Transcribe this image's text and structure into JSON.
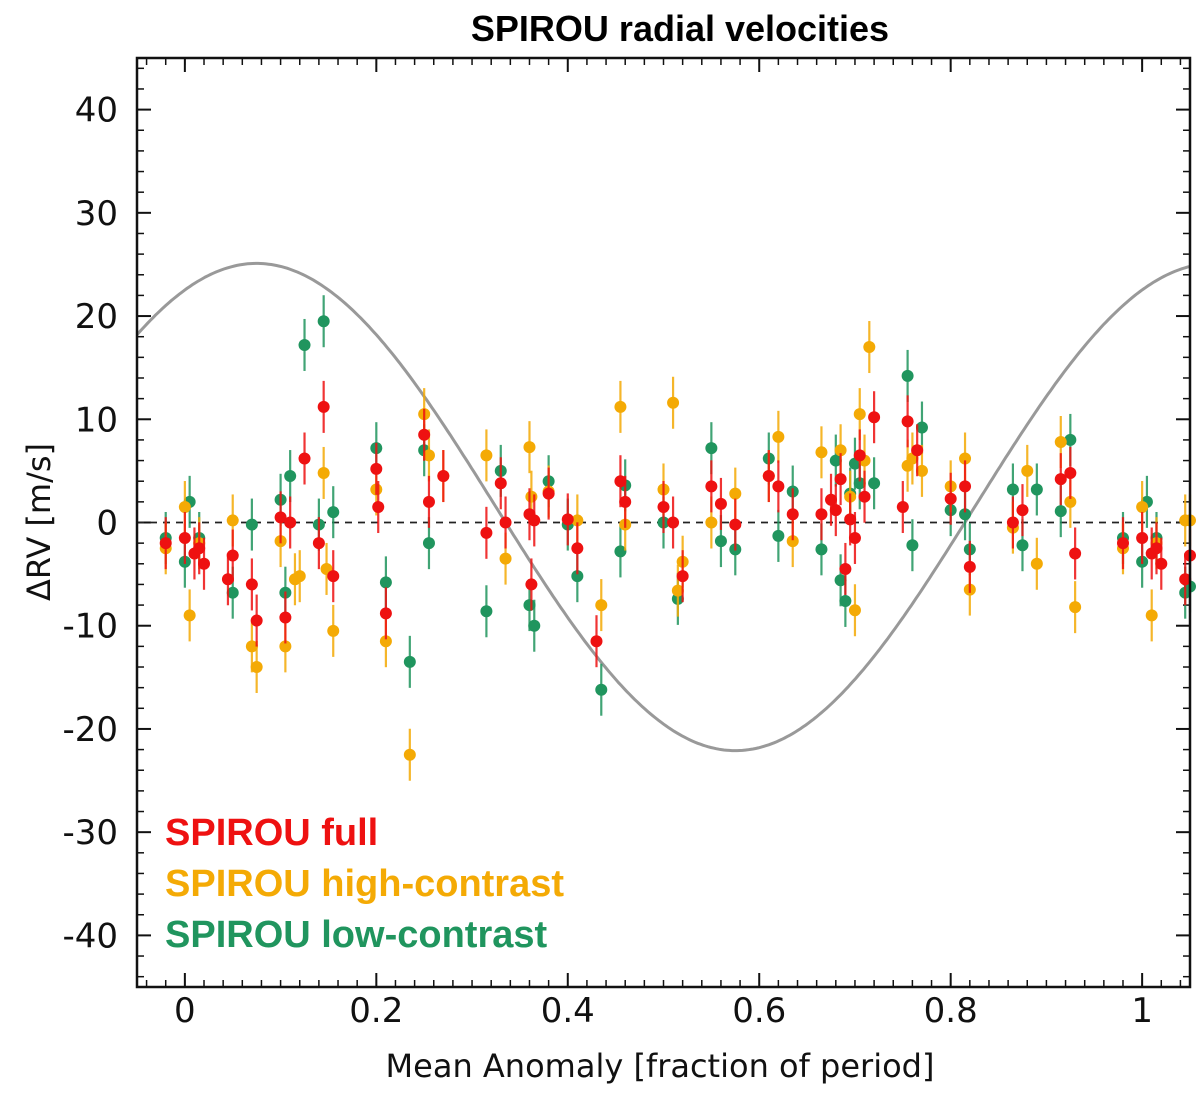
{
  "chart_data": {
    "type": "scatter",
    "title": "SPIROU radial velocities",
    "xlabel": "Mean Anomaly [fraction of period]",
    "ylabel": "ΔRV [m/s]",
    "xlim": [
      -0.05,
      1.05
    ],
    "ylim": [
      -45,
      45
    ],
    "xticks": [
      0,
      0.2,
      0.4,
      0.6,
      0.8,
      1
    ],
    "xtick_labels": [
      "0",
      "0.2",
      "0.4",
      "0.6",
      "0.8",
      "1"
    ],
    "yticks": [
      -40,
      -30,
      -20,
      -10,
      0,
      10,
      20,
      30,
      40
    ],
    "ytick_labels": [
      "-40",
      "-30",
      "-20",
      "-10",
      "0",
      "10",
      "20",
      "30",
      "40"
    ],
    "zero_line": 0,
    "model_curve": {
      "type": "sinusoid",
      "mean": 1.5,
      "amplitude": 23.6,
      "max_at_phase": 0.075
    },
    "legend_position": "bottom-left",
    "series": [
      {
        "name": "SPIROU full",
        "color": "#ee1111",
        "x": [
          -0.02,
          0.0,
          0.01,
          0.015,
          0.02,
          0.045,
          0.05,
          0.07,
          0.075,
          0.1,
          0.105,
          0.11,
          0.125,
          0.14,
          0.145,
          0.155,
          0.2,
          0.202,
          0.21,
          0.25,
          0.255,
          0.27,
          0.315,
          0.33,
          0.335,
          0.36,
          0.362,
          0.365,
          0.38,
          0.4,
          0.41,
          0.43,
          0.455,
          0.46,
          0.5,
          0.51,
          0.52,
          0.55,
          0.56,
          0.575,
          0.61,
          0.62,
          0.635,
          0.665,
          0.675,
          0.68,
          0.685,
          0.69,
          0.695,
          0.7,
          0.705,
          0.71,
          0.72,
          0.75,
          0.755,
          0.765,
          0.8,
          0.815,
          0.82,
          0.865,
          0.875,
          0.915,
          0.925,
          0.93,
          0.98,
          1.0,
          1.01,
          1.015,
          1.02,
          1.045,
          1.05
        ],
        "y": [
          -2,
          -1.5,
          -3,
          -2.5,
          -4,
          -5.5,
          -3.2,
          -6,
          -9.5,
          0.5,
          -9.2,
          0,
          6.2,
          -2,
          11.2,
          -5.2,
          5.2,
          1.5,
          -8.8,
          8.5,
          2,
          4.5,
          -1,
          3.8,
          0,
          0.8,
          -6,
          0.2,
          2.8,
          0.3,
          -2.5,
          -11.5,
          4,
          2,
          1.5,
          0,
          -5.2,
          3.5,
          1.8,
          -0.2,
          4.5,
          3.5,
          0.8,
          0.8,
          2.2,
          1.2,
          4.2,
          -4.5,
          0.3,
          -1.5,
          6.5,
          2.5,
          10.2,
          1.5,
          9.8,
          7,
          2.3,
          3.5,
          -4.3,
          0,
          1.2,
          4.2,
          4.8,
          -3,
          -2,
          -1.5,
          -3,
          -2.5,
          -4,
          -5.5,
          -3.2
        ]
      },
      {
        "name": "SPIROU high-contrast",
        "color": "#f4aa05",
        "x": [
          -0.02,
          0.0,
          0.005,
          0.015,
          0.05,
          0.07,
          0.075,
          0.1,
          0.105,
          0.115,
          0.12,
          0.145,
          0.148,
          0.155,
          0.2,
          0.21,
          0.235,
          0.25,
          0.255,
          0.27,
          0.315,
          0.335,
          0.36,
          0.362,
          0.38,
          0.41,
          0.435,
          0.455,
          0.46,
          0.5,
          0.51,
          0.515,
          0.52,
          0.55,
          0.575,
          0.61,
          0.62,
          0.635,
          0.665,
          0.685,
          0.695,
          0.7,
          0.705,
          0.71,
          0.715,
          0.755,
          0.76,
          0.77,
          0.8,
          0.815,
          0.82,
          0.865,
          0.88,
          0.89,
          0.915,
          0.925,
          0.93,
          0.98,
          1.0,
          1.01,
          1.015,
          1.045,
          1.05
        ],
        "y": [
          -2.5,
          1.5,
          -9,
          -2,
          0.2,
          -12,
          -14,
          -1.8,
          -12,
          -5.5,
          -5.2,
          4.8,
          -4.5,
          -10.5,
          3.2,
          -11.5,
          -22.5,
          10.5,
          6.5,
          4.5,
          6.5,
          -3.5,
          7.3,
          2.5,
          3,
          0.2,
          -8,
          11.2,
          -0.2,
          3.2,
          11.6,
          -6.6,
          -3.8,
          0,
          2.8,
          4.5,
          8.3,
          -1.8,
          6.8,
          7,
          2.5,
          -8.5,
          10.5,
          6,
          17,
          5.5,
          6.2,
          5,
          3.5,
          6.2,
          -6.5,
          -0.5,
          5,
          -4,
          7.8,
          2,
          -8.2,
          -2.5,
          1.5,
          -9,
          -2,
          0.2,
          0.2
        ]
      },
      {
        "name": "SPIROU low-contrast",
        "color": "#20955e",
        "x": [
          -0.02,
          0.0,
          0.005,
          0.015,
          0.05,
          0.07,
          0.1,
          0.105,
          0.11,
          0.125,
          0.14,
          0.145,
          0.155,
          0.2,
          0.21,
          0.235,
          0.25,
          0.255,
          0.315,
          0.33,
          0.36,
          0.365,
          0.38,
          0.4,
          0.41,
          0.435,
          0.455,
          0.46,
          0.5,
          0.515,
          0.55,
          0.56,
          0.575,
          0.61,
          0.62,
          0.635,
          0.665,
          0.68,
          0.685,
          0.69,
          0.695,
          0.7,
          0.705,
          0.72,
          0.755,
          0.76,
          0.77,
          0.8,
          0.815,
          0.82,
          0.865,
          0.875,
          0.89,
          0.915,
          0.925,
          0.98,
          1.0,
          1.005,
          1.015,
          1.045,
          1.05
        ],
        "y": [
          -1.5,
          -3.8,
          2,
          -1.5,
          -6.8,
          -0.2,
          2.2,
          -6.8,
          4.5,
          17.2,
          -0.2,
          19.5,
          1,
          7.2,
          -5.8,
          -13.5,
          7,
          -2,
          -8.6,
          5,
          -8,
          -10,
          4,
          -0.2,
          -5.2,
          -16.2,
          -2.8,
          3.6,
          0,
          -7.4,
          7.2,
          -1.8,
          -2.6,
          6.2,
          -1.3,
          3,
          -2.6,
          6,
          -5.6,
          -7.6,
          2.8,
          5.7,
          3.8,
          3.8,
          14.2,
          -2.2,
          9.2,
          1.2,
          0.8,
          -2.6,
          3.2,
          -2.2,
          3.2,
          1.1,
          8,
          -1.5,
          -3.8,
          2,
          -1.5,
          -6.8,
          -6.2
        ]
      }
    ]
  }
}
